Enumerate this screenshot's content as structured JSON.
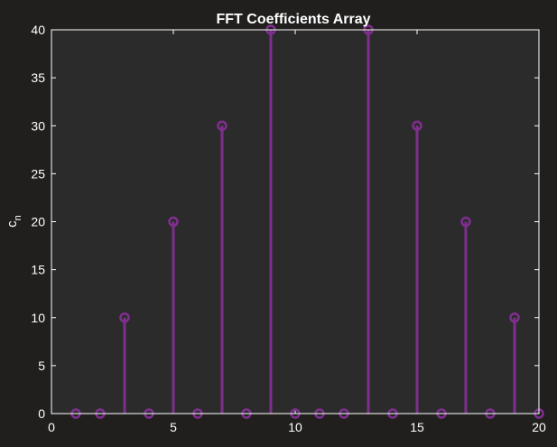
{
  "chart_data": {
    "type": "stem",
    "title": "FFT Coefficients Array",
    "xlabel": "",
    "ylabel": "c",
    "ylabel_subscript": "n",
    "xlim": [
      0,
      20
    ],
    "ylim": [
      0,
      40
    ],
    "xticks": [
      0,
      5,
      10,
      15,
      20
    ],
    "yticks": [
      0,
      5,
      10,
      15,
      20,
      25,
      30,
      35,
      40
    ],
    "grid": false,
    "x": [
      1,
      2,
      3,
      4,
      5,
      6,
      7,
      8,
      9,
      10,
      11,
      12,
      13,
      14,
      15,
      16,
      17,
      18,
      19,
      20
    ],
    "y": [
      0,
      0,
      10,
      0,
      20,
      0,
      30,
      0,
      40,
      0,
      0,
      0,
      40,
      0,
      30,
      0,
      20,
      0,
      10,
      0
    ],
    "colors": {
      "figure_background": "#201f1e",
      "axes_background": "#2b2b2b",
      "axes_line": "#ffffff",
      "stem": "#7e2f8e"
    }
  }
}
